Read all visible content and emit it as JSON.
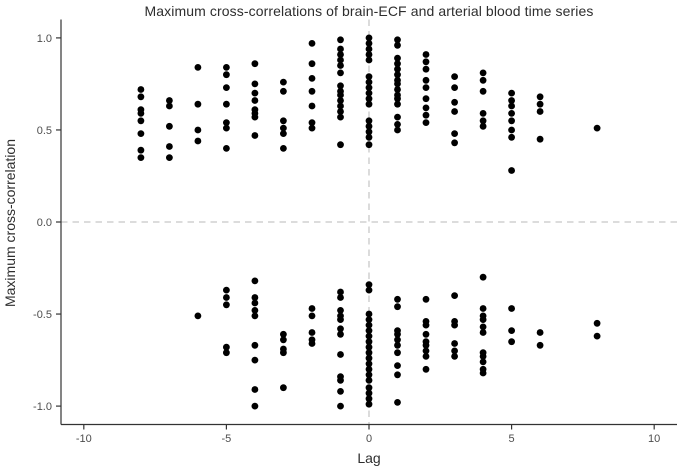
{
  "chart_data": {
    "type": "scatter",
    "title": "Maximum cross-correlations of brain-ECF and arterial blood time series",
    "xlabel": "Lag",
    "ylabel": "Maximum cross-correlation",
    "xlim": [
      -10.8,
      10.8
    ],
    "ylim": [
      -1.1,
      1.1
    ],
    "x_ticks": {
      "values": [
        -10,
        -5,
        0,
        5,
        10
      ],
      "labels": [
        "-10",
        "-5",
        "0",
        "5",
        "10"
      ]
    },
    "y_ticks": {
      "values": [
        1.0,
        0.5,
        0.0,
        -0.5,
        -1.0
      ],
      "labels": [
        "1.0",
        "0.5",
        "0.0",
        "-0.5",
        "-1.0"
      ]
    },
    "grid": "off",
    "legend": "none",
    "reference_lines": [
      {
        "orientation": "horizontal",
        "value": 0,
        "style": "dashed"
      },
      {
        "orientation": "vertical",
        "value": 0,
        "style": "dashed"
      }
    ],
    "point_style": {
      "radius": 3.4
    },
    "colors": {
      "point": "#000000",
      "reference_line": "#c8c8c8",
      "axis_line": "#333333",
      "tick_mark": "#333333",
      "tick_label": "#4d4d4d",
      "title": "#2e2e2e",
      "background": "#ffffff"
    },
    "series": [
      {
        "lag": -8,
        "values": [
          0.72,
          0.68,
          0.61,
          0.59,
          0.55,
          0.48,
          0.39,
          0.35
        ]
      },
      {
        "lag": -7,
        "values": [
          0.66,
          0.63,
          0.52,
          0.41,
          0.35
        ]
      },
      {
        "lag": -6,
        "values": [
          0.84,
          0.64,
          0.5,
          0.44,
          -0.51
        ]
      },
      {
        "lag": -5,
        "values": [
          0.84,
          0.8,
          0.73,
          0.64,
          0.54,
          0.51,
          0.4,
          -0.37,
          -0.41,
          -0.45,
          -0.68,
          -0.71
        ]
      },
      {
        "lag": -4,
        "values": [
          0.86,
          0.75,
          0.7,
          0.66,
          0.61,
          0.59,
          0.57,
          0.47,
          -0.32,
          -0.41,
          -0.44,
          -0.48,
          -0.51,
          -0.67,
          -0.75,
          -0.91,
          -1.0
        ]
      },
      {
        "lag": -3,
        "values": [
          0.76,
          0.71,
          0.55,
          0.51,
          0.48,
          0.4,
          -0.61,
          -0.64,
          -0.69,
          -0.71,
          -0.9
        ]
      },
      {
        "lag": -2,
        "values": [
          0.97,
          0.86,
          0.78,
          0.71,
          0.63,
          0.54,
          0.51,
          -0.47,
          -0.51,
          -0.6,
          -0.64,
          -0.66
        ]
      },
      {
        "lag": -1,
        "values": [
          0.99,
          0.94,
          0.91,
          0.88,
          0.85,
          0.81,
          0.74,
          0.71,
          0.69,
          0.66,
          0.63,
          0.6,
          0.57,
          0.42,
          -0.38,
          -0.41,
          -0.48,
          -0.51,
          -0.53,
          -0.58,
          -0.61,
          -0.72,
          -0.84,
          -0.86,
          -0.92,
          -1.0
        ]
      },
      {
        "lag": 0,
        "values": [
          1.0,
          0.97,
          0.94,
          0.91,
          0.88,
          0.79,
          0.76,
          0.73,
          0.7,
          0.67,
          0.64,
          0.55,
          0.52,
          0.49,
          0.46,
          0.42,
          -0.34,
          -0.37,
          -0.5,
          -0.53,
          -0.56,
          -0.59,
          -0.62,
          -0.65,
          -0.68,
          -0.71,
          -0.74,
          -0.77,
          -0.8,
          -0.83,
          -0.86,
          -0.9,
          -0.93,
          -0.96,
          -0.99
        ]
      },
      {
        "lag": 1,
        "values": [
          0.99,
          0.96,
          0.89,
          0.86,
          0.83,
          0.8,
          0.77,
          0.75,
          0.72,
          0.69,
          0.67,
          0.64,
          0.57,
          0.53,
          0.5,
          -0.42,
          -0.46,
          -0.59,
          -0.61,
          -0.64,
          -0.67,
          -0.71,
          -0.78,
          -0.83,
          -0.98
        ]
      },
      {
        "lag": 2,
        "values": [
          0.91,
          0.87,
          0.83,
          0.77,
          0.73,
          0.67,
          0.62,
          0.58,
          0.54,
          -0.42,
          -0.54,
          -0.56,
          -0.61,
          -0.65,
          -0.67,
          -0.7,
          -0.73,
          -0.8
        ]
      },
      {
        "lag": 3,
        "values": [
          0.79,
          0.73,
          0.65,
          0.6,
          0.48,
          0.43,
          -0.4,
          -0.54,
          -0.56,
          -0.66,
          -0.7,
          -0.73
        ]
      },
      {
        "lag": 4,
        "values": [
          0.81,
          0.77,
          0.71,
          0.59,
          0.55,
          0.52,
          -0.3,
          -0.47,
          -0.51,
          -0.53,
          -0.57,
          -0.6,
          -0.71,
          -0.73,
          -0.76,
          -0.8,
          -0.82
        ]
      },
      {
        "lag": 5,
        "values": [
          0.7,
          0.66,
          0.63,
          0.59,
          0.55,
          0.5,
          0.46,
          0.28,
          -0.47,
          -0.59,
          -0.65
        ]
      },
      {
        "lag": 6,
        "values": [
          0.68,
          0.64,
          0.6,
          0.45,
          -0.6,
          -0.67
        ]
      },
      {
        "lag": 8,
        "values": [
          0.51,
          -0.55,
          -0.62
        ]
      }
    ]
  }
}
